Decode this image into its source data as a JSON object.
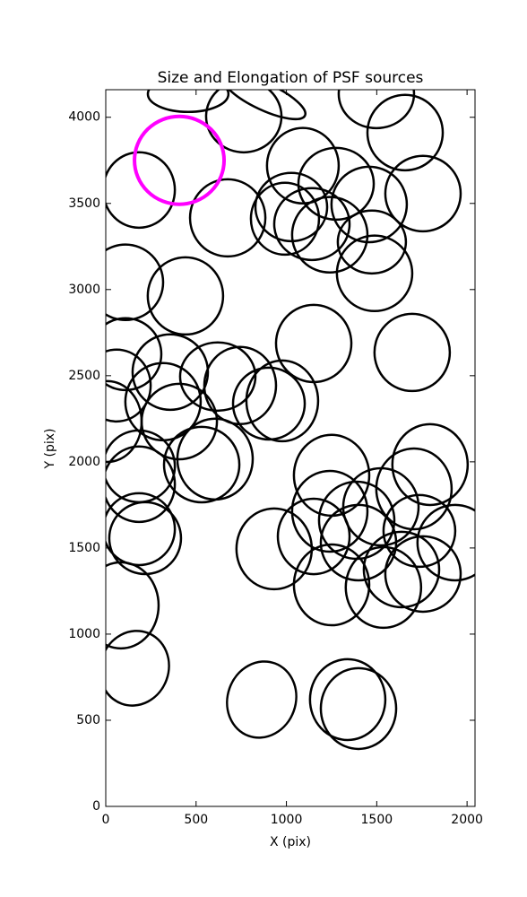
{
  "chart_data": {
    "type": "ellipse",
    "title": "Size and Elongation of PSF sources",
    "xlabel": "X (pix)",
    "ylabel": "Y (pix)",
    "xlim": [
      0,
      2044
    ],
    "ylim": [
      0,
      4160
    ],
    "xticks": [
      0,
      500,
      1000,
      1500,
      2000
    ],
    "yticks": [
      0,
      500,
      1000,
      1500,
      2000,
      2500,
      3000,
      3500,
      4000
    ],
    "series": [
      {
        "color": "#000000",
        "linewidth": 2.5,
        "x": [
          456,
          878,
          764,
          1498,
          1657,
          184,
          675,
          1091,
          1275,
          1458,
          1756,
          1027,
          992,
          1141,
          1240,
          1473,
          1488,
          109,
          441,
          1151,
          1696,
          109,
          60,
          357,
          620,
          744,
          317,
          977,
          903,
          407,
          10,
          184,
          184,
          531,
          605,
          1250,
          1795,
          1706,
          1240,
          1389,
          1523,
          1151,
          1399,
          932,
          1736,
          1934,
          184,
          218,
          1250,
          1537,
          1637,
          1756,
          84,
          159,
          863,
          1339,
          1399
        ],
        "y": [
          4135,
          4120,
          4005,
          4135,
          3911,
          3578,
          3416,
          3719,
          3614,
          3494,
          3557,
          3479,
          3411,
          3380,
          3318,
          3276,
          3094,
          3042,
          2963,
          2687,
          2635,
          2625,
          2443,
          2521,
          2495,
          2443,
          2349,
          2354,
          2338,
          2234,
          2234,
          1974,
          1870,
          1984,
          2016,
          1922,
          1984,
          1843,
          1713,
          1661,
          1739,
          1567,
          1531,
          1495,
          1599,
          1531,
          1609,
          1557,
          1286,
          1271,
          1375,
          1349,
          1167,
          802,
          620,
          620,
          568
        ],
        "width": [
          446,
          496,
          417,
          417,
          417,
          397,
          417,
          397,
          417,
          417,
          417,
          397,
          377,
          417,
          417,
          377,
          417,
          417,
          417,
          417,
          417,
          397,
          377,
          417,
          417,
          397,
          417,
          397,
          397,
          417,
          377,
          397,
          397,
          417,
          417,
          417,
          417,
          417,
          417,
          417,
          417,
          397,
          417,
          417,
          397,
          417,
          397,
          397,
          417,
          417,
          417,
          417,
          417,
          377,
          377,
          417,
          417
        ],
        "height": [
          208,
          156,
          417,
          396,
          438,
          438,
          448,
          438,
          417,
          438,
          438,
          396,
          417,
          417,
          438,
          365,
          438,
          438,
          448,
          448,
          448,
          417,
          417,
          438,
          396,
          448,
          448,
          469,
          417,
          438,
          469,
          417,
          438,
          438,
          469,
          469,
          469,
          469,
          469,
          448,
          448,
          438,
          438,
          469,
          417,
          438,
          417,
          417,
          469,
          469,
          438,
          438,
          500,
          438,
          448,
          469,
          469
        ],
        "angle": [
          0,
          -25,
          0,
          0,
          0,
          0,
          0,
          0,
          0,
          0,
          0,
          0,
          0,
          0,
          0,
          0,
          0,
          0,
          0,
          0,
          0,
          0,
          0,
          0,
          0,
          0,
          0,
          0,
          0,
          0,
          0,
          0,
          0,
          0,
          0,
          0,
          0,
          0,
          0,
          0,
          0,
          0,
          0,
          0,
          0,
          0,
          0,
          0,
          0,
          0,
          0,
          0,
          0,
          -20,
          -20,
          0,
          0
        ]
      },
      {
        "color": "#ff00ff",
        "linewidth": 4,
        "x": [
          407
        ],
        "y": [
          3750
        ],
        "width": [
          496
        ],
        "height": [
          510
        ],
        "angle": [
          0
        ]
      }
    ]
  }
}
